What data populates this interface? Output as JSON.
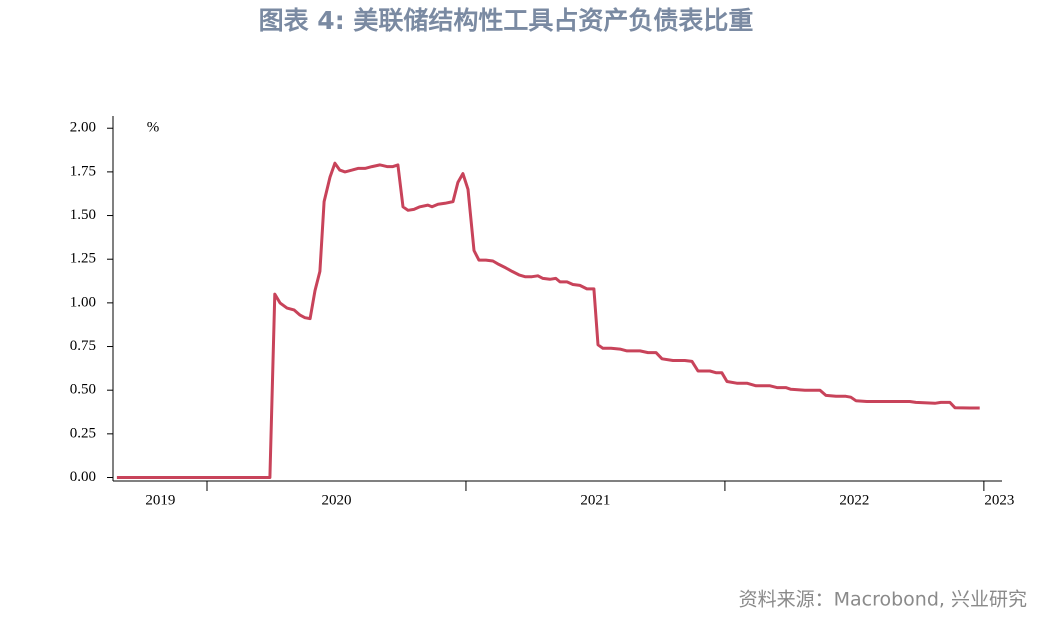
{
  "chart_data": {
    "type": "line",
    "title": "图表 4:  美联储结构性工具占资产负债表比重",
    "y_unit": "%",
    "source": "资料来源：Macrobond, 兴业研究",
    "xlim": [
      2019.637,
      2023.07
    ],
    "xticks": [
      2020,
      2021,
      2022,
      2023
    ],
    "year_labels": [
      {
        "value": 2019.82,
        "label": "2019"
      },
      {
        "value": 2020.5,
        "label": "2020"
      },
      {
        "value": 2021.5,
        "label": "2021"
      },
      {
        "value": 2022.5,
        "label": "2022"
      },
      {
        "value": 2023.06,
        "label": "2023"
      }
    ],
    "ylim": [
      -0.02,
      2.07
    ],
    "yticks": [
      {
        "value": 0,
        "label": "0.00"
      },
      {
        "value": 0.25,
        "label": "0.25"
      },
      {
        "value": 0.5,
        "label": "0.50"
      },
      {
        "value": 0.75,
        "label": "0.75"
      },
      {
        "value": 1,
        "label": "1.00"
      },
      {
        "value": 1.25,
        "label": "1.25"
      },
      {
        "value": 1.5,
        "label": "1.50"
      },
      {
        "value": 1.75,
        "label": "1.75"
      },
      {
        "value": 2,
        "label": "2.00"
      }
    ],
    "color": "#c8435a",
    "x": [
      2019.652,
      2020.243,
      2020.262,
      2020.282,
      2020.309,
      2020.336,
      2020.359,
      2020.378,
      2020.398,
      2020.417,
      2020.436,
      2020.452,
      2020.475,
      2020.494,
      2020.513,
      2020.533,
      2020.56,
      2020.583,
      2020.61,
      2020.637,
      2020.668,
      2020.695,
      2020.718,
      2020.737,
      2020.757,
      2020.776,
      2020.799,
      2020.822,
      2020.853,
      2020.869,
      2020.892,
      2020.919,
      2020.95,
      2020.969,
      2020.988,
      2021.008,
      2021.031,
      2021.05,
      2021.077,
      2021.104,
      2021.127,
      2021.154,
      2021.178,
      2021.205,
      2021.228,
      2021.255,
      2021.278,
      2021.297,
      2021.324,
      2021.347,
      2021.363,
      2021.39,
      2021.413,
      2021.44,
      2021.467,
      2021.494,
      2021.51,
      2021.529,
      2021.56,
      2021.595,
      2021.622,
      2021.672,
      2021.703,
      2021.734,
      2021.757,
      2021.799,
      2021.845,
      2021.873,
      2021.896,
      2021.942,
      2021.965,
      2021.988,
      2022.008,
      2022.046,
      2022.085,
      2022.12,
      2022.174,
      2022.201,
      2022.235,
      2022.255,
      2022.309,
      2022.367,
      2022.39,
      2022.429,
      2022.467,
      2022.486,
      2022.506,
      2022.548,
      2022.598,
      2022.656,
      2022.714,
      2022.737,
      2022.811,
      2022.834,
      2022.869,
      2022.888,
      2022.946,
      2022.984
    ],
    "values": [
      0,
      0,
      1.05,
      1.0,
      0.97,
      0.96,
      0.93,
      0.915,
      0.91,
      1.07,
      1.18,
      1.58,
      1.72,
      1.8,
      1.76,
      1.75,
      1.76,
      1.77,
      1.77,
      1.78,
      1.79,
      1.78,
      1.78,
      1.79,
      1.55,
      1.53,
      1.535,
      1.55,
      1.56,
      1.55,
      1.565,
      1.57,
      1.58,
      1.69,
      1.74,
      1.65,
      1.3,
      1.245,
      1.245,
      1.24,
      1.22,
      1.2,
      1.18,
      1.16,
      1.15,
      1.15,
      1.155,
      1.14,
      1.135,
      1.14,
      1.12,
      1.12,
      1.105,
      1.1,
      1.08,
      1.08,
      0.76,
      0.74,
      0.74,
      0.735,
      0.725,
      0.725,
      0.715,
      0.715,
      0.68,
      0.67,
      0.67,
      0.665,
      0.61,
      0.61,
      0.6,
      0.6,
      0.55,
      0.54,
      0.54,
      0.525,
      0.525,
      0.515,
      0.515,
      0.505,
      0.5,
      0.5,
      0.47,
      0.465,
      0.465,
      0.46,
      0.44,
      0.435,
      0.435,
      0.435,
      0.435,
      0.43,
      0.425,
      0.43,
      0.43,
      0.4,
      0.398,
      0.398
    ]
  }
}
